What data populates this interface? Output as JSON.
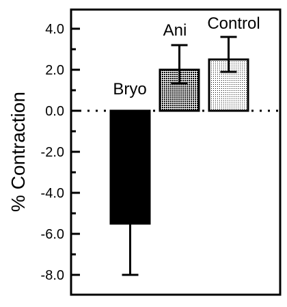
{
  "chart_data": {
    "type": "bar",
    "title": "",
    "xlabel": "",
    "ylabel": "% Contraction",
    "ylim": [
      -9,
      5
    ],
    "yticks": [
      {
        "value": 4.0,
        "label": "4.0"
      },
      {
        "value": 2.0,
        "label": "2.0"
      },
      {
        "value": 0.0,
        "label": "0.0"
      },
      {
        "value": -2.0,
        "label": "-2.0"
      },
      {
        "value": -4.0,
        "label": "-4.0"
      },
      {
        "value": -6.0,
        "label": "-6.0"
      },
      {
        "value": -8.0,
        "label": "-8.0"
      }
    ],
    "yminor": [
      5,
      3,
      1,
      -1,
      -3,
      -5,
      -7,
      -9
    ],
    "categories": [
      "Bryo",
      "Ani",
      "Control"
    ],
    "values": [
      -5.5,
      2.0,
      2.5
    ],
    "errors": [
      2.5,
      1.2,
      1.1
    ],
    "bar_fills": [
      "solid-black",
      "dense-stipple",
      "light-stipple"
    ],
    "zero_line": "dotted",
    "grid": false,
    "legend": "none",
    "colors": {
      "axis": "#000000",
      "bar_solid": "#000000",
      "background": "#ffffff"
    }
  }
}
